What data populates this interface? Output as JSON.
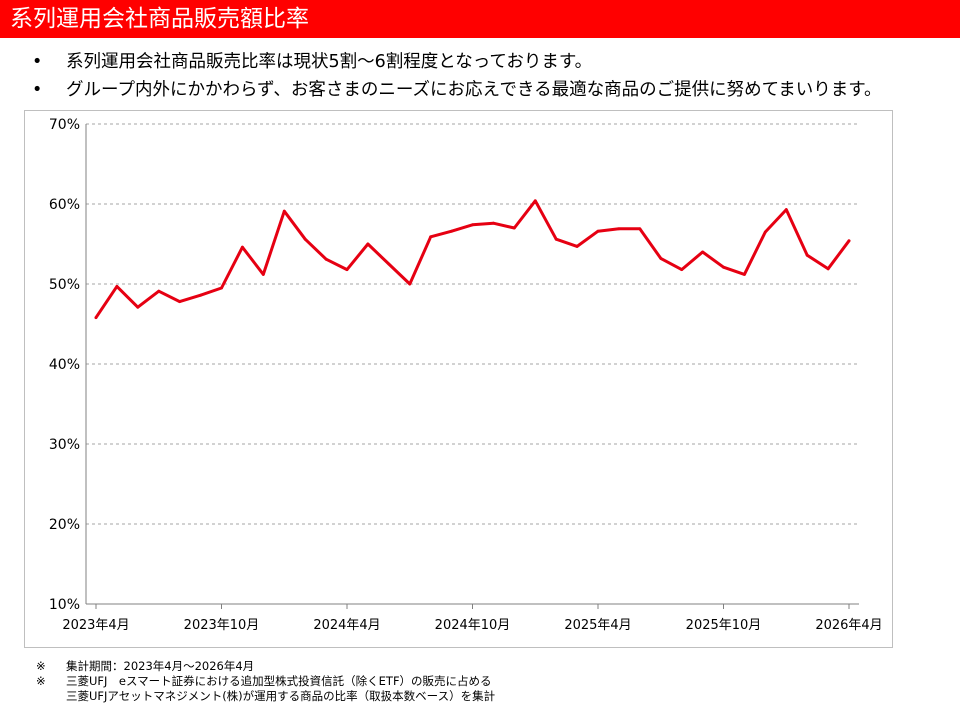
{
  "header": {
    "title": "系列運用会社商品販売額比率"
  },
  "bullets": [
    {
      "marker": "•",
      "text": "系列運用会社商品販売比率は現状5割～6割程度となっております。"
    },
    {
      "marker": "•",
      "text": "グループ内外にかかわらず、お客さまのニーズにお応えできる最適な商品のご提供に努めてまいります。"
    }
  ],
  "chart_data": {
    "type": "line",
    "title": "",
    "xlabel": "",
    "ylabel": "",
    "ylim": [
      10,
      70
    ],
    "yticks": [
      "10%",
      "20%",
      "30%",
      "40%",
      "50%",
      "60%",
      "70%"
    ],
    "y_tick_values": [
      10,
      20,
      30,
      40,
      50,
      60,
      70
    ],
    "grid": true,
    "legend": "none",
    "x_tick_labels": [
      {
        "label": "2023年4月",
        "index": 0
      },
      {
        "label": "2023年10月",
        "index": 6
      },
      {
        "label": "2024年4月",
        "index": 12
      },
      {
        "label": "2024年10月",
        "index": 18
      },
      {
        "label": "2025年4月",
        "index": 24
      },
      {
        "label": "2025年10月",
        "index": 30
      },
      {
        "label": "2026年4月",
        "index": 36
      }
    ],
    "x": [
      "2023-04",
      "2023-05",
      "2023-06",
      "2023-07",
      "2023-08",
      "2023-09",
      "2023-10",
      "2023-11",
      "2023-12",
      "2024-01",
      "2024-02",
      "2024-03",
      "2024-04",
      "2024-05",
      "2024-06",
      "2024-07",
      "2024-08",
      "2024-09",
      "2024-10",
      "2024-11",
      "2024-12",
      "2025-01",
      "2025-02",
      "2025-03",
      "2025-04",
      "2025-05",
      "2025-06",
      "2025-07",
      "2025-08",
      "2025-09",
      "2025-10",
      "2025-11",
      "2025-12",
      "2026-01",
      "2026-02",
      "2026-03",
      "2026-04"
    ],
    "series": [
      {
        "color": "#e60012",
        "values": [
          45.8,
          49.7,
          47.1,
          49.1,
          47.8,
          48.6,
          49.5,
          54.6,
          51.2,
          59.1,
          55.6,
          53.1,
          51.8,
          55.0,
          52.5,
          50.0,
          55.9,
          56.6,
          57.4,
          57.6,
          57.0,
          60.4,
          55.6,
          54.7,
          56.6,
          56.9,
          56.9,
          53.2,
          51.8,
          54.0,
          52.1,
          51.2,
          56.5,
          59.3,
          53.6,
          51.9,
          55.4
        ]
      }
    ]
  },
  "notes": [
    {
      "mark": "※",
      "lines": [
        "集計期間：2023年4月～2026年4月"
      ]
    },
    {
      "mark": "※",
      "lines": [
        "三菱UFJ　eスマート証券における追加型株式投資信託（除くETF）の販売に占める",
        "三菱UFJアセットマネジメント(株)が運用する商品の比率（取扱本数ベース）を集計"
      ]
    }
  ]
}
